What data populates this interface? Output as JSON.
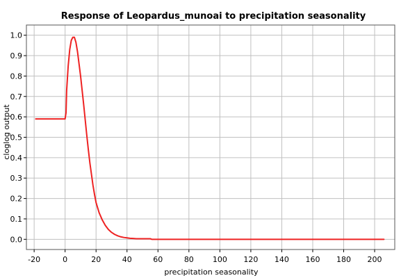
{
  "chart_data": {
    "type": "line",
    "title": "Response of Leopardus_munoai to precipitation seasonality",
    "xlabel": "precipitation seasonality",
    "ylabel": "cloglog output",
    "xlim": [
      -25,
      213
    ],
    "ylim": [
      -0.05,
      1.05
    ],
    "x_ticks": [
      -20,
      0,
      20,
      40,
      60,
      80,
      100,
      120,
      140,
      160,
      180,
      200
    ],
    "y_ticks": [
      0.0,
      0.1,
      0.2,
      0.3,
      0.4,
      0.5,
      0.6,
      0.7,
      0.8,
      0.9,
      1.0
    ],
    "x_tick_labels": [
      "-20",
      "0",
      "20",
      "40",
      "60",
      "80",
      "100",
      "120",
      "140",
      "160",
      "180",
      "200"
    ],
    "y_tick_labels": [
      "0.0",
      "0.1",
      "0.2",
      "0.3",
      "0.4",
      "0.5",
      "0.6",
      "0.7",
      "0.8",
      "0.9",
      "1.0"
    ],
    "grid": true,
    "line_color": "#ee2222",
    "grid_color": "#c0c0c0",
    "series": [
      {
        "x": [
          -19,
          -10,
          0,
          0.6,
          1,
          2,
          3,
          4,
          5,
          6,
          7,
          8,
          9,
          10,
          11,
          12,
          13,
          14,
          15,
          16,
          17,
          18,
          19,
          20,
          22,
          24,
          26,
          28,
          30,
          32,
          34,
          36,
          38,
          40,
          42,
          44,
          46,
          50,
          55,
          56,
          60,
          80,
          100,
          120,
          140,
          160,
          180,
          200,
          206
        ],
        "y": [
          0.59,
          0.59,
          0.59,
          0.62,
          0.73,
          0.85,
          0.93,
          0.975,
          0.99,
          0.99,
          0.965,
          0.92,
          0.86,
          0.8,
          0.73,
          0.66,
          0.585,
          0.51,
          0.44,
          0.375,
          0.32,
          0.265,
          0.22,
          0.18,
          0.13,
          0.095,
          0.068,
          0.048,
          0.034,
          0.024,
          0.017,
          0.012,
          0.009,
          0.007,
          0.005,
          0.004,
          0.003,
          0.003,
          0.003,
          0.0,
          0.0,
          0.0,
          0.0,
          0.0,
          0.0,
          0.0,
          0.0,
          0.0,
          0.0
        ]
      }
    ]
  }
}
